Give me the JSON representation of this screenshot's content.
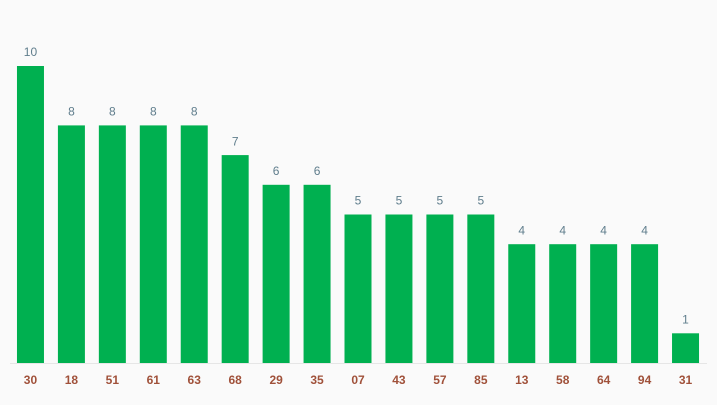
{
  "chart_data": {
    "type": "bar",
    "categories": [
      "30",
      "18",
      "51",
      "61",
      "63",
      "68",
      "29",
      "35",
      "07",
      "43",
      "57",
      "85",
      "13",
      "58",
      "64",
      "94",
      "31"
    ],
    "values": [
      10,
      8,
      8,
      8,
      8,
      7,
      6,
      6,
      5,
      5,
      5,
      5,
      4,
      4,
      4,
      4,
      1
    ],
    "color": "#00b050"
  }
}
